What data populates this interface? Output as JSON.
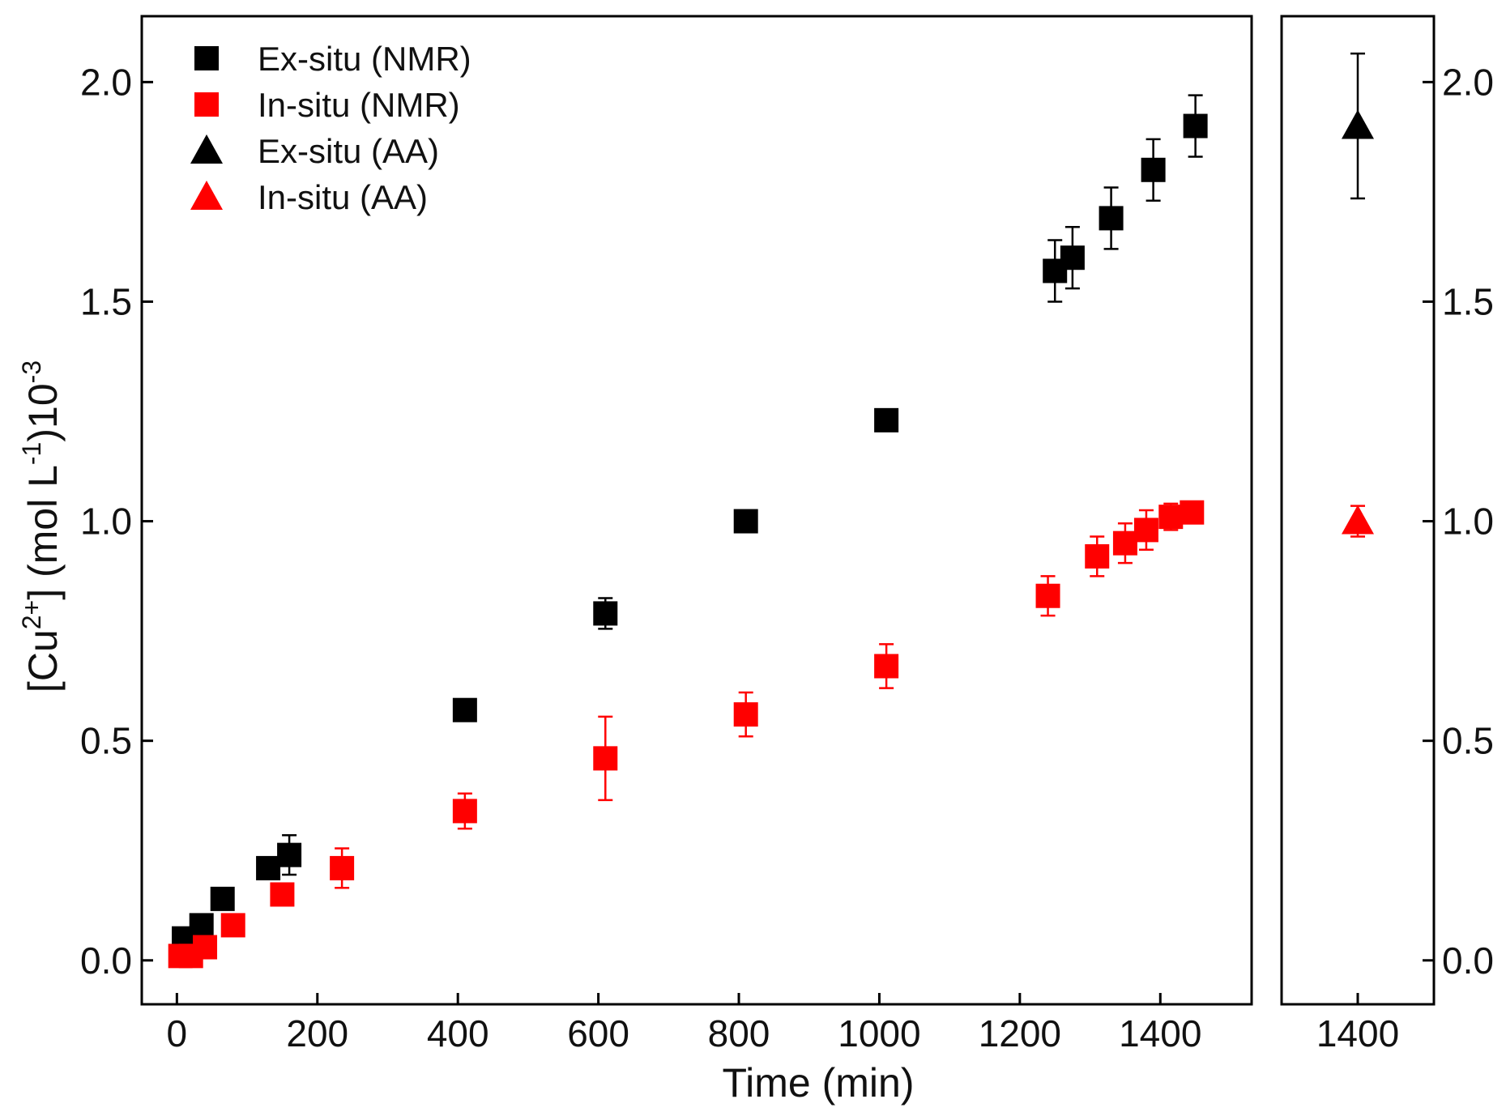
{
  "chart_data": {
    "type": "scatter",
    "title": "",
    "xlabel": "Time (min)",
    "ylabel": "[Cu2+] (mol L-1)10-3",
    "ylabel_parts": {
      "open": "[Cu",
      "charge": "2+",
      "mid": "] (mol L",
      "exp1": "-1",
      "close": ")10",
      "exp2": "-3"
    },
    "ylim": [
      -0.1,
      2.15
    ],
    "yticks": [
      0.0,
      0.5,
      1.0,
      1.5,
      2.0
    ],
    "ytick_labels": [
      "0.0",
      "0.5",
      "1.0",
      "1.5",
      "2.0"
    ],
    "main_panel": {
      "xlim": [
        -50,
        1530
      ],
      "xticks": [
        0,
        200,
        400,
        600,
        800,
        1000,
        1200,
        1400
      ],
      "xtick_labels": [
        "0",
        "200",
        "400",
        "600",
        "800",
        "1000",
        "1200",
        "1400"
      ]
    },
    "side_panel": {
      "xlim": [
        1270,
        1530
      ],
      "xticks": [
        1400
      ],
      "xtick_labels": [
        "1400"
      ]
    },
    "legend_position": "top-left",
    "series": [
      {
        "name": "Ex-situ (NMR)",
        "marker": "square",
        "color": "#000000",
        "panel": "main",
        "points": [
          {
            "x": 10,
            "y": 0.05,
            "err": 0.01
          },
          {
            "x": 35,
            "y": 0.08,
            "err": 0.01
          },
          {
            "x": 65,
            "y": 0.14,
            "err": 0.015
          },
          {
            "x": 130,
            "y": 0.21,
            "err": 0.02
          },
          {
            "x": 160,
            "y": 0.24,
            "err": 0.045
          },
          {
            "x": 410,
            "y": 0.57,
            "err": 0.015
          },
          {
            "x": 610,
            "y": 0.79,
            "err": 0.035
          },
          {
            "x": 810,
            "y": 1.0,
            "err": 0.015
          },
          {
            "x": 1010,
            "y": 1.23,
            "err": 0.015
          },
          {
            "x": 1250,
            "y": 1.57,
            "err": 0.07
          },
          {
            "x": 1275,
            "y": 1.6,
            "err": 0.07
          },
          {
            "x": 1330,
            "y": 1.69,
            "err": 0.07
          },
          {
            "x": 1390,
            "y": 1.8,
            "err": 0.07
          },
          {
            "x": 1450,
            "y": 1.9,
            "err": 0.07
          }
        ]
      },
      {
        "name": "In-situ (NMR)",
        "marker": "square",
        "color": "#ff0000",
        "panel": "main",
        "points": [
          {
            "x": 5,
            "y": 0.01,
            "err": 0.01
          },
          {
            "x": 20,
            "y": 0.01,
            "err": 0.01
          },
          {
            "x": 40,
            "y": 0.03,
            "err": 0.01
          },
          {
            "x": 80,
            "y": 0.08,
            "err": 0.01
          },
          {
            "x": 150,
            "y": 0.15,
            "err": 0.015
          },
          {
            "x": 235,
            "y": 0.21,
            "err": 0.045
          },
          {
            "x": 410,
            "y": 0.34,
            "err": 0.04
          },
          {
            "x": 610,
            "y": 0.46,
            "err": 0.095
          },
          {
            "x": 810,
            "y": 0.56,
            "err": 0.05
          },
          {
            "x": 1010,
            "y": 0.67,
            "err": 0.05
          },
          {
            "x": 1240,
            "y": 0.83,
            "err": 0.045
          },
          {
            "x": 1310,
            "y": 0.92,
            "err": 0.045
          },
          {
            "x": 1350,
            "y": 0.95,
            "err": 0.045
          },
          {
            "x": 1380,
            "y": 0.98,
            "err": 0.045
          },
          {
            "x": 1415,
            "y": 1.01,
            "err": 0.03
          },
          {
            "x": 1445,
            "y": 1.02,
            "err": 0.02
          }
        ]
      },
      {
        "name": "Ex-situ (AA)",
        "marker": "triangle",
        "color": "#000000",
        "panel": "side",
        "points": [
          {
            "x": 1400,
            "y": 1.9,
            "err": 0.165
          }
        ]
      },
      {
        "name": "In-situ (AA)",
        "marker": "triangle",
        "color": "#ff0000",
        "panel": "side",
        "points": [
          {
            "x": 1400,
            "y": 1.0,
            "err": 0.035
          }
        ]
      }
    ]
  }
}
